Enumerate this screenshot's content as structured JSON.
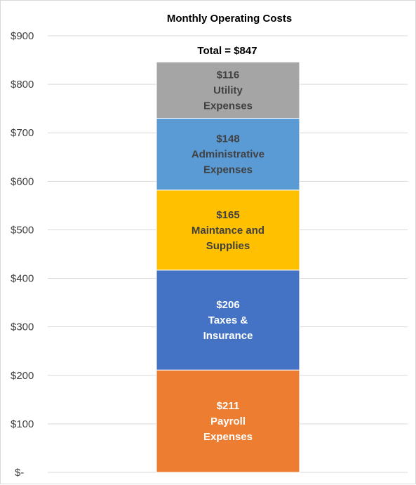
{
  "chart_data": {
    "type": "bar",
    "stacked": true,
    "title": "Monthly Operating Costs",
    "total_label": "Total = $847",
    "ylim": [
      0,
      900
    ],
    "y_ticks": [
      {
        "value": 0,
        "label": "$-"
      },
      {
        "value": 100,
        "label": "$100"
      },
      {
        "value": 200,
        "label": "$200"
      },
      {
        "value": 300,
        "label": "$300"
      },
      {
        "value": 400,
        "label": "$400"
      },
      {
        "value": 500,
        "label": "$500"
      },
      {
        "value": 600,
        "label": "$600"
      },
      {
        "value": 700,
        "label": "$700"
      },
      {
        "value": 800,
        "label": "$800"
      },
      {
        "value": 900,
        "label": "$900"
      }
    ],
    "grid": true,
    "legend": "none",
    "series": [
      {
        "value": 211,
        "value_label": "$211",
        "label_lines": [
          "Payroll",
          "Expenses"
        ],
        "color": "#ED7D31",
        "text_color": "#ffffff"
      },
      {
        "value": 206,
        "value_label": "$206",
        "label_lines": [
          "Taxes &",
          "Insurance"
        ],
        "color": "#4472C4",
        "text_color": "#ffffff"
      },
      {
        "value": 165,
        "value_label": "$165",
        "label_lines": [
          "Maintance and",
          "Supplies"
        ],
        "color": "#FFC000",
        "text_color": "#404040"
      },
      {
        "value": 148,
        "value_label": "$148",
        "label_lines": [
          "Administrative",
          "Expenses"
        ],
        "color": "#5B9BD5",
        "text_color": "#404040"
      },
      {
        "value": 116,
        "value_label": "$116",
        "label_lines": [
          "Utility",
          "Expenses"
        ],
        "color": "#A5A5A5",
        "text_color": "#404040"
      }
    ]
  }
}
